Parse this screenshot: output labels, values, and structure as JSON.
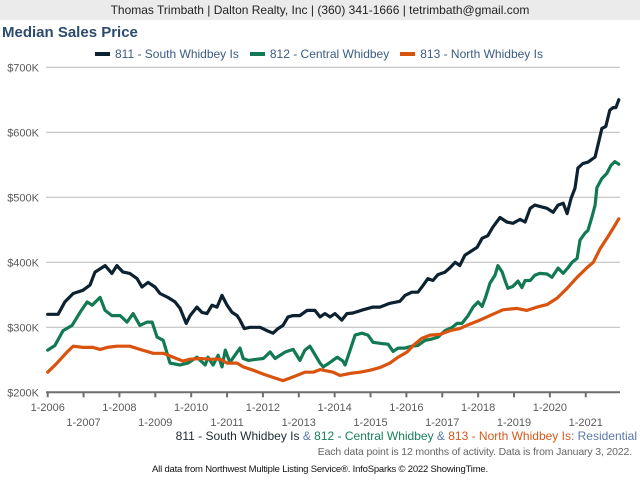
{
  "header": {
    "contact": "Thomas Trimbath | Dalton Realty, Inc | (360) 341-1666 | tetrimbath@gmail.com"
  },
  "chart_data": {
    "type": "line",
    "title": "Median Sales Price",
    "xlabel": "",
    "ylabel": "",
    "x_unit": "year (decimal, monthly rolling 12-month)",
    "y_unit": "thousand USD",
    "xlim": [
      2006,
      2021.92
    ],
    "ylim": [
      200,
      700
    ],
    "grid": true,
    "legend_position": "top-center",
    "y_ticks": [
      {
        "value": 700,
        "label": "$700K"
      },
      {
        "value": 600,
        "label": "$600K"
      },
      {
        "value": 500,
        "label": "$500K"
      },
      {
        "value": 400,
        "label": "$400K"
      },
      {
        "value": 300,
        "label": "$300K"
      },
      {
        "value": 200,
        "label": "$200K"
      }
    ],
    "x_ticks": [
      {
        "value": 2006,
        "label": "1-2006"
      },
      {
        "value": 2007,
        "label": "1-2007"
      },
      {
        "value": 2008,
        "label": "1-2008"
      },
      {
        "value": 2009,
        "label": "1-2009"
      },
      {
        "value": 2010,
        "label": "1-2010"
      },
      {
        "value": 2011,
        "label": "1-2011"
      },
      {
        "value": 2012,
        "label": "1-2012"
      },
      {
        "value": 2013,
        "label": "1-2013"
      },
      {
        "value": 2014,
        "label": "1-2014"
      },
      {
        "value": 2015,
        "label": "1-2015"
      },
      {
        "value": 2016,
        "label": "1-2016"
      },
      {
        "value": 2017,
        "label": "1-2017"
      },
      {
        "value": 2018,
        "label": "1-2018"
      },
      {
        "value": 2019,
        "label": "1-2019"
      },
      {
        "value": 2020,
        "label": "1-2020"
      },
      {
        "value": 2021,
        "label": "1-2021"
      }
    ],
    "series": [
      {
        "name": "811 - South Whidbey Is",
        "color": "#0d2230",
        "points": [
          [
            2006.0,
            320
          ],
          [
            2006.29,
            320
          ],
          [
            2006.48,
            339
          ],
          [
            2006.71,
            352
          ],
          [
            2006.98,
            357
          ],
          [
            2007.18,
            365
          ],
          [
            2007.32,
            385
          ],
          [
            2007.6,
            395
          ],
          [
            2007.79,
            383
          ],
          [
            2007.93,
            395
          ],
          [
            2008.1,
            385
          ],
          [
            2008.29,
            383
          ],
          [
            2008.49,
            375
          ],
          [
            2008.63,
            362
          ],
          [
            2008.8,
            369
          ],
          [
            2008.99,
            362
          ],
          [
            2009.13,
            352
          ],
          [
            2009.35,
            346
          ],
          [
            2009.55,
            339
          ],
          [
            2009.69,
            329
          ],
          [
            2009.86,
            306
          ],
          [
            2009.97,
            318
          ],
          [
            2010.16,
            331
          ],
          [
            2010.3,
            323
          ],
          [
            2010.44,
            321
          ],
          [
            2010.58,
            334
          ],
          [
            2010.72,
            331
          ],
          [
            2010.86,
            349
          ],
          [
            2011.0,
            334
          ],
          [
            2011.14,
            323
          ],
          [
            2011.28,
            318
          ],
          [
            2011.36,
            311
          ],
          [
            2011.48,
            298
          ],
          [
            2011.64,
            300
          ],
          [
            2011.92,
            300
          ],
          [
            2012.11,
            295
          ],
          [
            2012.28,
            291
          ],
          [
            2012.42,
            298
          ],
          [
            2012.56,
            303
          ],
          [
            2012.7,
            316
          ],
          [
            2012.84,
            318
          ],
          [
            2013.03,
            318
          ],
          [
            2013.23,
            326
          ],
          [
            2013.45,
            326
          ],
          [
            2013.59,
            316
          ],
          [
            2013.73,
            321
          ],
          [
            2013.87,
            316
          ],
          [
            2014.01,
            321
          ],
          [
            2014.2,
            311
          ],
          [
            2014.34,
            321
          ],
          [
            2014.51,
            322
          ],
          [
            2014.79,
            327
          ],
          [
            2015.07,
            331
          ],
          [
            2015.26,
            331
          ],
          [
            2015.54,
            337
          ],
          [
            2015.82,
            340
          ],
          [
            2015.96,
            349
          ],
          [
            2016.15,
            354
          ],
          [
            2016.32,
            354
          ],
          [
            2016.46,
            364
          ],
          [
            2016.6,
            375
          ],
          [
            2016.74,
            372
          ],
          [
            2016.88,
            381
          ],
          [
            2017.08,
            385
          ],
          [
            2017.22,
            392
          ],
          [
            2017.36,
            400
          ],
          [
            2017.49,
            395
          ],
          [
            2017.63,
            411
          ],
          [
            2017.83,
            418
          ],
          [
            2017.97,
            423
          ],
          [
            2018.11,
            437
          ],
          [
            2018.27,
            441
          ],
          [
            2018.41,
            454
          ],
          [
            2018.61,
            469
          ],
          [
            2018.8,
            462
          ],
          [
            2018.97,
            460
          ],
          [
            2019.17,
            466
          ],
          [
            2019.31,
            462
          ],
          [
            2019.45,
            483
          ],
          [
            2019.58,
            488
          ],
          [
            2019.72,
            486
          ],
          [
            2019.92,
            483
          ],
          [
            2020.09,
            477
          ],
          [
            2020.23,
            488
          ],
          [
            2020.37,
            491
          ],
          [
            2020.48,
            475
          ],
          [
            2020.59,
            498
          ],
          [
            2020.7,
            514
          ],
          [
            2020.78,
            545
          ],
          [
            2020.92,
            552
          ],
          [
            2021.06,
            554
          ],
          [
            2021.26,
            562
          ],
          [
            2021.34,
            580
          ],
          [
            2021.45,
            606
          ],
          [
            2021.56,
            609
          ],
          [
            2021.67,
            634
          ],
          [
            2021.76,
            638
          ],
          [
            2021.84,
            638
          ],
          [
            2021.92,
            650
          ]
        ]
      },
      {
        "name": "812 - Central Whidbey",
        "color": "#117a52",
        "points": [
          [
            2006.0,
            265
          ],
          [
            2006.2,
            272
          ],
          [
            2006.43,
            295
          ],
          [
            2006.68,
            303
          ],
          [
            2006.9,
            323
          ],
          [
            2007.1,
            339
          ],
          [
            2007.24,
            334
          ],
          [
            2007.46,
            346
          ],
          [
            2007.6,
            326
          ],
          [
            2007.79,
            318
          ],
          [
            2008.02,
            318
          ],
          [
            2008.21,
            308
          ],
          [
            2008.38,
            321
          ],
          [
            2008.57,
            303
          ],
          [
            2008.77,
            308
          ],
          [
            2008.91,
            308
          ],
          [
            2009.05,
            285
          ],
          [
            2009.22,
            280
          ],
          [
            2009.41,
            245
          ],
          [
            2009.69,
            242
          ],
          [
            2009.91,
            245
          ],
          [
            2010.16,
            254
          ],
          [
            2010.39,
            242
          ],
          [
            2010.47,
            254
          ],
          [
            2010.61,
            242
          ],
          [
            2010.75,
            257
          ],
          [
            2010.86,
            239
          ],
          [
            2010.95,
            265
          ],
          [
            2011.08,
            246
          ],
          [
            2011.36,
            268
          ],
          [
            2011.45,
            252
          ],
          [
            2011.59,
            249
          ],
          [
            2011.84,
            251
          ],
          [
            2012.01,
            252
          ],
          [
            2012.2,
            262
          ],
          [
            2012.34,
            252
          ],
          [
            2012.62,
            262
          ],
          [
            2012.84,
            266
          ],
          [
            2013.03,
            249
          ],
          [
            2013.17,
            265
          ],
          [
            2013.31,
            271
          ],
          [
            2013.59,
            245
          ],
          [
            2013.68,
            239
          ],
          [
            2013.87,
            246
          ],
          [
            2014.07,
            254
          ],
          [
            2014.23,
            248
          ],
          [
            2014.29,
            242
          ],
          [
            2014.43,
            265
          ],
          [
            2014.57,
            288
          ],
          [
            2014.76,
            291
          ],
          [
            2014.93,
            288
          ],
          [
            2015.07,
            277
          ],
          [
            2015.32,
            275
          ],
          [
            2015.49,
            274
          ],
          [
            2015.63,
            263
          ],
          [
            2015.77,
            268
          ],
          [
            2015.96,
            268
          ],
          [
            2016.15,
            271
          ],
          [
            2016.32,
            272
          ],
          [
            2016.52,
            280
          ],
          [
            2016.71,
            282
          ],
          [
            2016.88,
            285
          ],
          [
            2017.08,
            295
          ],
          [
            2017.28,
            300
          ],
          [
            2017.41,
            306
          ],
          [
            2017.55,
            306
          ],
          [
            2017.72,
            318
          ],
          [
            2017.86,
            331
          ],
          [
            2018.0,
            339
          ],
          [
            2018.11,
            332
          ],
          [
            2018.2,
            345
          ],
          [
            2018.33,
            368
          ],
          [
            2018.47,
            380
          ],
          [
            2018.55,
            395
          ],
          [
            2018.67,
            385
          ],
          [
            2018.75,
            372
          ],
          [
            2018.83,
            360
          ],
          [
            2018.97,
            363
          ],
          [
            2019.11,
            371
          ],
          [
            2019.22,
            361
          ],
          [
            2019.31,
            372
          ],
          [
            2019.45,
            372
          ],
          [
            2019.58,
            380
          ],
          [
            2019.72,
            383
          ],
          [
            2019.92,
            382
          ],
          [
            2020.06,
            377
          ],
          [
            2020.23,
            391
          ],
          [
            2020.37,
            383
          ],
          [
            2020.51,
            392
          ],
          [
            2020.62,
            400
          ],
          [
            2020.76,
            406
          ],
          [
            2020.84,
            434
          ],
          [
            2020.98,
            445
          ],
          [
            2021.06,
            449
          ],
          [
            2021.17,
            469
          ],
          [
            2021.26,
            488
          ],
          [
            2021.31,
            515
          ],
          [
            2021.45,
            529
          ],
          [
            2021.59,
            537
          ],
          [
            2021.7,
            549
          ],
          [
            2021.81,
            555
          ],
          [
            2021.92,
            551
          ]
        ]
      },
      {
        "name": "813 - North Whidbey Is",
        "color": "#d9530e",
        "points": [
          [
            2006.0,
            231
          ],
          [
            2006.26,
            245
          ],
          [
            2006.54,
            262
          ],
          [
            2006.71,
            271
          ],
          [
            2006.98,
            269
          ],
          [
            2007.26,
            269
          ],
          [
            2007.46,
            266
          ],
          [
            2007.66,
            269
          ],
          [
            2007.93,
            271
          ],
          [
            2008.29,
            271
          ],
          [
            2008.57,
            266
          ],
          [
            2008.94,
            260
          ],
          [
            2009.22,
            260
          ],
          [
            2009.5,
            254
          ],
          [
            2009.77,
            248
          ],
          [
            2009.97,
            251
          ],
          [
            2010.25,
            252
          ],
          [
            2010.53,
            251
          ],
          [
            2010.81,
            251
          ],
          [
            2011.0,
            245
          ],
          [
            2011.28,
            245
          ],
          [
            2011.45,
            239
          ],
          [
            2011.73,
            234
          ],
          [
            2012.01,
            228
          ],
          [
            2012.28,
            223
          ],
          [
            2012.56,
            218
          ],
          [
            2012.76,
            222
          ],
          [
            2012.95,
            226
          ],
          [
            2013.17,
            231
          ],
          [
            2013.4,
            231
          ],
          [
            2013.59,
            235
          ],
          [
            2013.96,
            231
          ],
          [
            2014.15,
            226
          ],
          [
            2014.43,
            229
          ],
          [
            2014.71,
            231
          ],
          [
            2014.99,
            234
          ],
          [
            2015.26,
            238
          ],
          [
            2015.54,
            245
          ],
          [
            2015.77,
            254
          ],
          [
            2016.02,
            262
          ],
          [
            2016.19,
            272
          ],
          [
            2016.43,
            283
          ],
          [
            2016.66,
            288
          ],
          [
            2016.94,
            289
          ],
          [
            2017.22,
            295
          ],
          [
            2017.49,
            298
          ],
          [
            2017.77,
            305
          ],
          [
            2018.05,
            311
          ],
          [
            2018.33,
            318
          ],
          [
            2018.69,
            327
          ],
          [
            2019.08,
            329
          ],
          [
            2019.36,
            326
          ],
          [
            2019.64,
            331
          ],
          [
            2019.92,
            335
          ],
          [
            2020.2,
            345
          ],
          [
            2020.48,
            360
          ],
          [
            2020.76,
            377
          ],
          [
            2021.04,
            392
          ],
          [
            2021.21,
            400
          ],
          [
            2021.4,
            421
          ],
          [
            2021.59,
            437
          ],
          [
            2021.76,
            452
          ],
          [
            2021.92,
            467
          ]
        ]
      }
    ]
  },
  "caption": {
    "part_811": "811 - South Whidbey Is",
    "amp_1": " & ",
    "part_812": "812 - Central Whidbey",
    "amp_2": " & ",
    "part_813": "813 - North Whidbey Is",
    "suffix": ": Residential"
  },
  "note": "Each data point is 12 months of activity. Data is from January 3, 2022.",
  "footer": "All data from Northwest Multiple Listing Service®. InfoSparks © 2022 ShowingTime."
}
